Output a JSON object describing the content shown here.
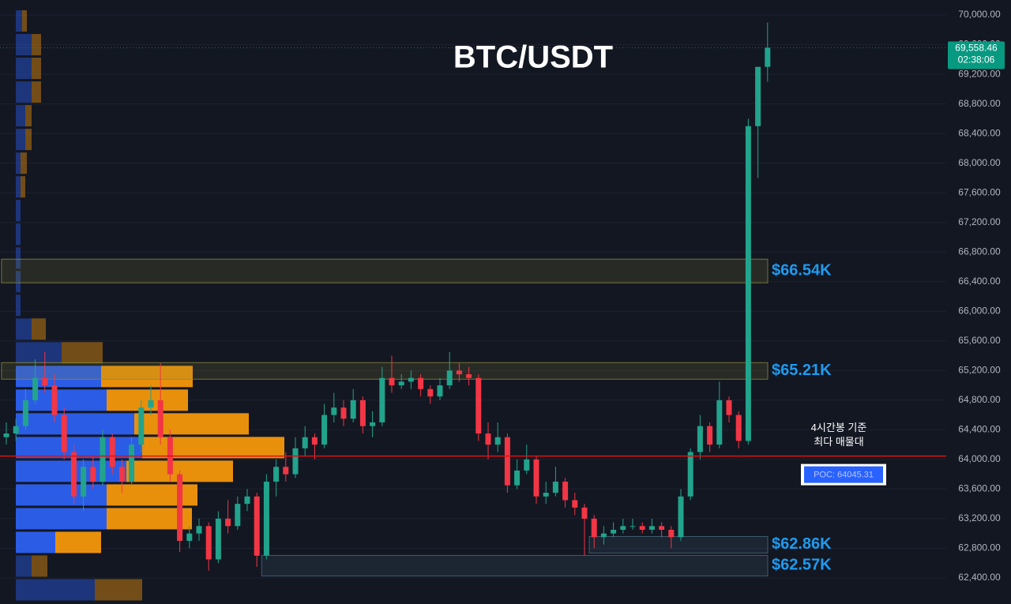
{
  "chart_data": {
    "type": "candlestick",
    "title": "BTC/USDT",
    "ylim": [
      62048,
      70203
    ],
    "yticks": [
      {
        "value": 62400,
        "label": "62,400.00"
      },
      {
        "value": 62800,
        "label": "62,800.00"
      },
      {
        "value": 63200,
        "label": "63,200.00"
      },
      {
        "value": 63600,
        "label": "63,600.00"
      },
      {
        "value": 64000,
        "label": "64,000.00"
      },
      {
        "value": 64400,
        "label": "64,400.00"
      },
      {
        "value": 64800,
        "label": "64,800.00"
      },
      {
        "value": 65200,
        "label": "65,200.00"
      },
      {
        "value": 65600,
        "label": "65,600.00"
      },
      {
        "value": 66000,
        "label": "66,000.00"
      },
      {
        "value": 66400,
        "label": "66,400.00"
      },
      {
        "value": 66800,
        "label": "66,800.00"
      },
      {
        "value": 67200,
        "label": "67,200.00"
      },
      {
        "value": 67600,
        "label": "67,600.00"
      },
      {
        "value": 68000,
        "label": "68,000.00"
      },
      {
        "value": 68400,
        "label": "68,400.00"
      },
      {
        "value": 68800,
        "label": "68,800.00"
      },
      {
        "value": 69200,
        "label": "69,200.00"
      },
      {
        "value": 69600,
        "label": "69,600.00"
      },
      {
        "value": 70000,
        "label": "70,000.00"
      }
    ],
    "grid": true,
    "up_color": "#22a38c",
    "down_color": "#f23645",
    "candles": [
      [
        64300,
        64500,
        64200,
        64350
      ],
      [
        64350,
        64550,
        64250,
        64450
      ],
      [
        64450,
        64950,
        64400,
        64800
      ],
      [
        64800,
        65350,
        64750,
        65100
      ],
      [
        65100,
        65450,
        64900,
        65000
      ],
      [
        65000,
        65150,
        64500,
        64600
      ],
      [
        64600,
        64700,
        64000,
        64100
      ],
      [
        64100,
        64200,
        63400,
        63500
      ],
      [
        63500,
        64000,
        63300,
        63900
      ],
      [
        63900,
        64050,
        63600,
        63700
      ],
      [
        63700,
        64400,
        63650,
        64300
      ],
      [
        64300,
        64350,
        63800,
        63900
      ],
      [
        63900,
        64000,
        63550,
        63700
      ],
      [
        63700,
        64300,
        63650,
        64200
      ],
      [
        64200,
        64800,
        64100,
        64700
      ],
      [
        64700,
        65000,
        64600,
        64800
      ],
      [
        64800,
        65300,
        64200,
        64300
      ],
      [
        64300,
        64400,
        63700,
        63800
      ],
      [
        63800,
        63850,
        62750,
        62900
      ],
      [
        62900,
        63100,
        62800,
        63000
      ],
      [
        63000,
        63200,
        62900,
        63100
      ],
      [
        63100,
        63150,
        62500,
        62650
      ],
      [
        62650,
        63300,
        62600,
        63200
      ],
      [
        63200,
        63450,
        63000,
        63100
      ],
      [
        63100,
        63500,
        63050,
        63400
      ],
      [
        63400,
        63600,
        63300,
        63500
      ],
      [
        63500,
        63550,
        62550,
        62700
      ],
      [
        62700,
        63800,
        62650,
        63700
      ],
      [
        63700,
        64000,
        63500,
        63900
      ],
      [
        63900,
        64100,
        63700,
        63800
      ],
      [
        63800,
        64300,
        63750,
        64150
      ],
      [
        64150,
        64450,
        64050,
        64300
      ],
      [
        64300,
        64350,
        64000,
        64200
      ],
      [
        64200,
        64750,
        64150,
        64600
      ],
      [
        64600,
        64900,
        64500,
        64700
      ],
      [
        64700,
        64800,
        64450,
        64550
      ],
      [
        64550,
        64950,
        64500,
        64800
      ],
      [
        64800,
        64850,
        64350,
        64450
      ],
      [
        64450,
        64650,
        64300,
        64500
      ],
      [
        64500,
        65250,
        64450,
        65100
      ],
      [
        65100,
        65400,
        64900,
        65000
      ],
      [
        65000,
        65150,
        64950,
        65050
      ],
      [
        65050,
        65200,
        64950,
        65100
      ],
      [
        65100,
        65150,
        64850,
        64950
      ],
      [
        64950,
        65000,
        64750,
        64850
      ],
      [
        64850,
        65100,
        64800,
        65000
      ],
      [
        65000,
        65450,
        64950,
        65200
      ],
      [
        65200,
        65300,
        65050,
        65150
      ],
      [
        65150,
        65250,
        65000,
        65100
      ],
      [
        65100,
        65150,
        64250,
        64350
      ],
      [
        64350,
        64500,
        64000,
        64200
      ],
      [
        64200,
        64500,
        64100,
        64300
      ],
      [
        64300,
        64350,
        63550,
        63650
      ],
      [
        63650,
        64000,
        63600,
        63850
      ],
      [
        63850,
        64200,
        63800,
        64000
      ],
      [
        64000,
        64050,
        63400,
        63500
      ],
      [
        63500,
        63700,
        63400,
        63550
      ],
      [
        63550,
        63900,
        63500,
        63700
      ],
      [
        63700,
        63750,
        63350,
        63450
      ],
      [
        63450,
        63550,
        63250,
        63350
      ],
      [
        63350,
        63400,
        62700,
        63200
      ],
      [
        63200,
        63250,
        62800,
        62950
      ],
      [
        62950,
        63100,
        62850,
        63000
      ],
      [
        63000,
        63150,
        62950,
        63050
      ],
      [
        63050,
        63200,
        63000,
        63100
      ],
      [
        63100,
        63200,
        63050,
        63100
      ],
      [
        63100,
        63150,
        63000,
        63050
      ],
      [
        63050,
        63200,
        63000,
        63100
      ],
      [
        63100,
        63150,
        62950,
        63050
      ],
      [
        63050,
        63100,
        62800,
        62950
      ],
      [
        62950,
        63600,
        62900,
        63500
      ],
      [
        63500,
        64150,
        63450,
        64100
      ],
      [
        64100,
        64600,
        64000,
        64450
      ],
      [
        64450,
        64500,
        64100,
        64200
      ],
      [
        64200,
        65050,
        64150,
        64800
      ],
      [
        64800,
        64850,
        64500,
        64600
      ],
      [
        64600,
        64650,
        64150,
        64250
      ],
      [
        64250,
        68600,
        64200,
        68500
      ],
      [
        68500,
        69300,
        67800,
        69300
      ],
      [
        69300,
        69900,
        69100,
        69558.46
      ]
    ],
    "volume_profile": {
      "bins": [
        62080,
        62400,
        62720,
        63040,
        63360,
        63680,
        64000,
        64320,
        64640,
        64960,
        65280,
        65600,
        65920,
        66240,
        66560,
        66880,
        67200,
        67520,
        67840,
        68160,
        68480,
        68800,
        69120,
        69440,
        69760,
        70080
      ],
      "buy": [
        100,
        20,
        50,
        115,
        115,
        140,
        160,
        150,
        115,
        108,
        58,
        20,
        6,
        6,
        6,
        6,
        6,
        6,
        6,
        12,
        12,
        20,
        20,
        20,
        8
      ],
      "sell": [
        60,
        20,
        58,
        108,
        115,
        135,
        180,
        145,
        103,
        116,
        52,
        18,
        0,
        0,
        0,
        0,
        0,
        6,
        8,
        8,
        8,
        12,
        12,
        12,
        6
      ],
      "buy_color": "#2b5ce6",
      "sell_color": "#e8900c",
      "value_area": [
        62720,
        65280
      ]
    },
    "zones": [
      {
        "low": 66384,
        "high": 66704,
        "start": 0,
        "label": "$66.54K",
        "color": "#8a8a3a"
      },
      {
        "low": 65083,
        "high": 65307,
        "start": 0,
        "label": "$65.21K",
        "color": "#8a8a3a"
      },
      {
        "low": 62736,
        "high": 62960,
        "start": 61,
        "label": "$62.86K",
        "color": "#4a6a80"
      },
      {
        "low": 62427,
        "high": 62704,
        "start": 27,
        "label": "$62.57K",
        "color": "#4a6a80"
      }
    ],
    "poc": {
      "value": 64045.31,
      "label": "POC: 64045.31",
      "color": "#e01010"
    },
    "annotation": [
      "4시간봉 기준",
      "최다 매물대"
    ],
    "last_price": {
      "value": 69558.46,
      "label": "69,558.46"
    },
    "countdown": "02:38:06"
  }
}
